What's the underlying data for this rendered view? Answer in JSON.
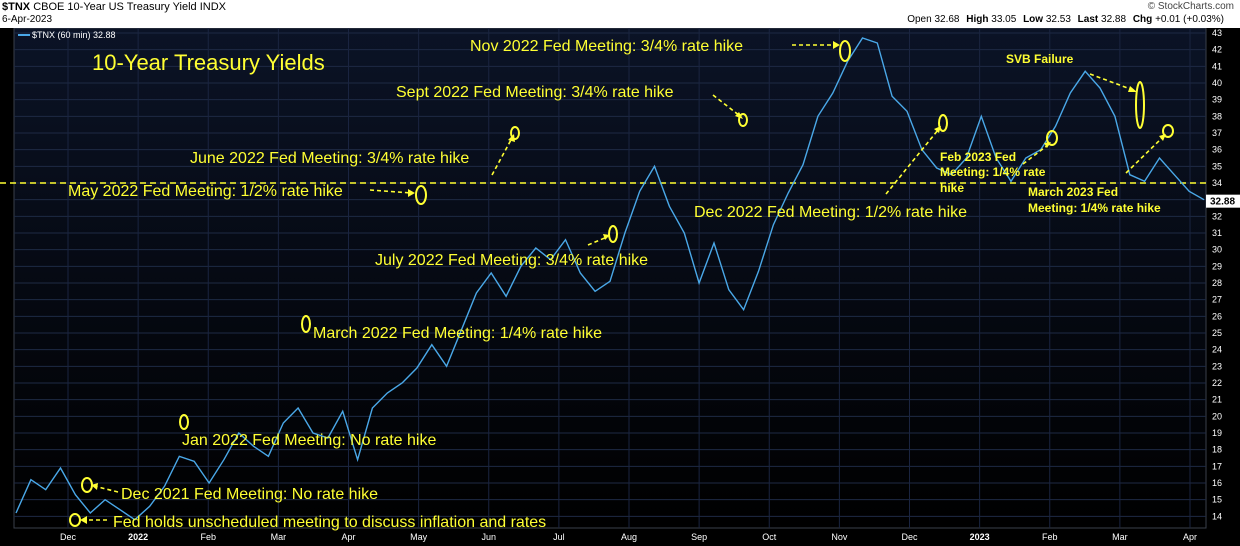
{
  "header": {
    "symbol": "$TNX",
    "description": "CBOE 10-Year US Treasury Yield INDX",
    "date": "6-Apr-2023",
    "watermark": "© StockCharts.com",
    "open_label": "Open",
    "open": "32.68",
    "high_label": "High",
    "high": "33.05",
    "low_label": "Low",
    "low": "32.53",
    "last_label": "Last",
    "last": "32.88",
    "chg_label": "Chg",
    "chg": "+0.01 (+0.03%)"
  },
  "legend": {
    "series": "$TNX (60 min) 32.88"
  },
  "colors": {
    "line": "#4aa8e8",
    "annotation": "#ffff33",
    "grid": "#1e2a44",
    "last_badge": "#ffffff"
  },
  "chart_data": {
    "type": "line",
    "title": "10-Year Treasury Yields",
    "ylim": [
      13.3,
      43.3
    ],
    "y_ticks": [
      14,
      15,
      16,
      17,
      18,
      19,
      20,
      21,
      22,
      23,
      24,
      25,
      26,
      27,
      28,
      29,
      30,
      31,
      32,
      33,
      34,
      35,
      36,
      37,
      38,
      39,
      40,
      41,
      42,
      43
    ],
    "x_ticks": [
      "Dec",
      "2022",
      "Feb",
      "Mar",
      "Apr",
      "May",
      "Jun",
      "Jul",
      "Aug",
      "Sep",
      "Oct",
      "Nov",
      "Dec",
      "2023",
      "Feb",
      "Mar",
      "Apr"
    ],
    "last_value": "32.88",
    "reference_level": 34.0,
    "series": [
      {
        "values": [
          14.2,
          16.2,
          15.6,
          16.9,
          15.3,
          14.2,
          15.0,
          14.4,
          13.8,
          14.6,
          15.8,
          17.6,
          17.3,
          16.0,
          17.4,
          19.0,
          18.2,
          17.6,
          19.6,
          20.5,
          19.0,
          18.7,
          20.3,
          17.4,
          20.5,
          21.4,
          22.0,
          22.9,
          24.3,
          23.0,
          25.2,
          27.4,
          28.6,
          27.2,
          29.0,
          30.1,
          29.4,
          30.6,
          28.6,
          27.5,
          28.1,
          31.0,
          33.5,
          35.0,
          32.6,
          31.0,
          28.0,
          30.4,
          27.6,
          26.4,
          28.7,
          31.5,
          33.4,
          35.1,
          38.0,
          39.4,
          41.3,
          42.7,
          42.4,
          39.2,
          38.3,
          36.0,
          34.9,
          34.5,
          35.5,
          38.0,
          35.5,
          34.1,
          35.5,
          36.0,
          37.4,
          39.4,
          40.7,
          39.7,
          38.0,
          34.5,
          34.1,
          35.5,
          34.5,
          33.5,
          33.0
        ],
        "n_points": 81
      }
    ]
  },
  "annotations": [
    {
      "text": "Nov 2022 Fed Meeting: 3/4% rate hike"
    },
    {
      "text": "Sept 2022 Fed Meeting: 3/4% rate hike"
    },
    {
      "text": "June 2022 Fed Meeting: 3/4% rate hike"
    },
    {
      "text": "May 2022 Fed Meeting: 1/2% rate hike"
    },
    {
      "text": "July 2022 Fed Meeting: 3/4% rate hike"
    },
    {
      "text": "March 2022 Fed Meeting: 1/4% rate hike"
    },
    {
      "text": "Jan 2022 Fed Meeting: No rate hike"
    },
    {
      "text": "Dec 2021 Fed Meeting: No rate hike"
    },
    {
      "text": "Fed holds unscheduled meeting to discuss inflation and rates"
    },
    {
      "text": "Dec 2022 Fed Meeting: 1/2% rate hike"
    },
    {
      "text": "SVB Failure"
    },
    {
      "line1": "Feb 2023 Fed",
      "line2": "Meeting: 1/4% rate",
      "line3": "hike"
    },
    {
      "line1": "March 2023 Fed",
      "line2": "Meeting: 1/4% rate hike"
    }
  ]
}
